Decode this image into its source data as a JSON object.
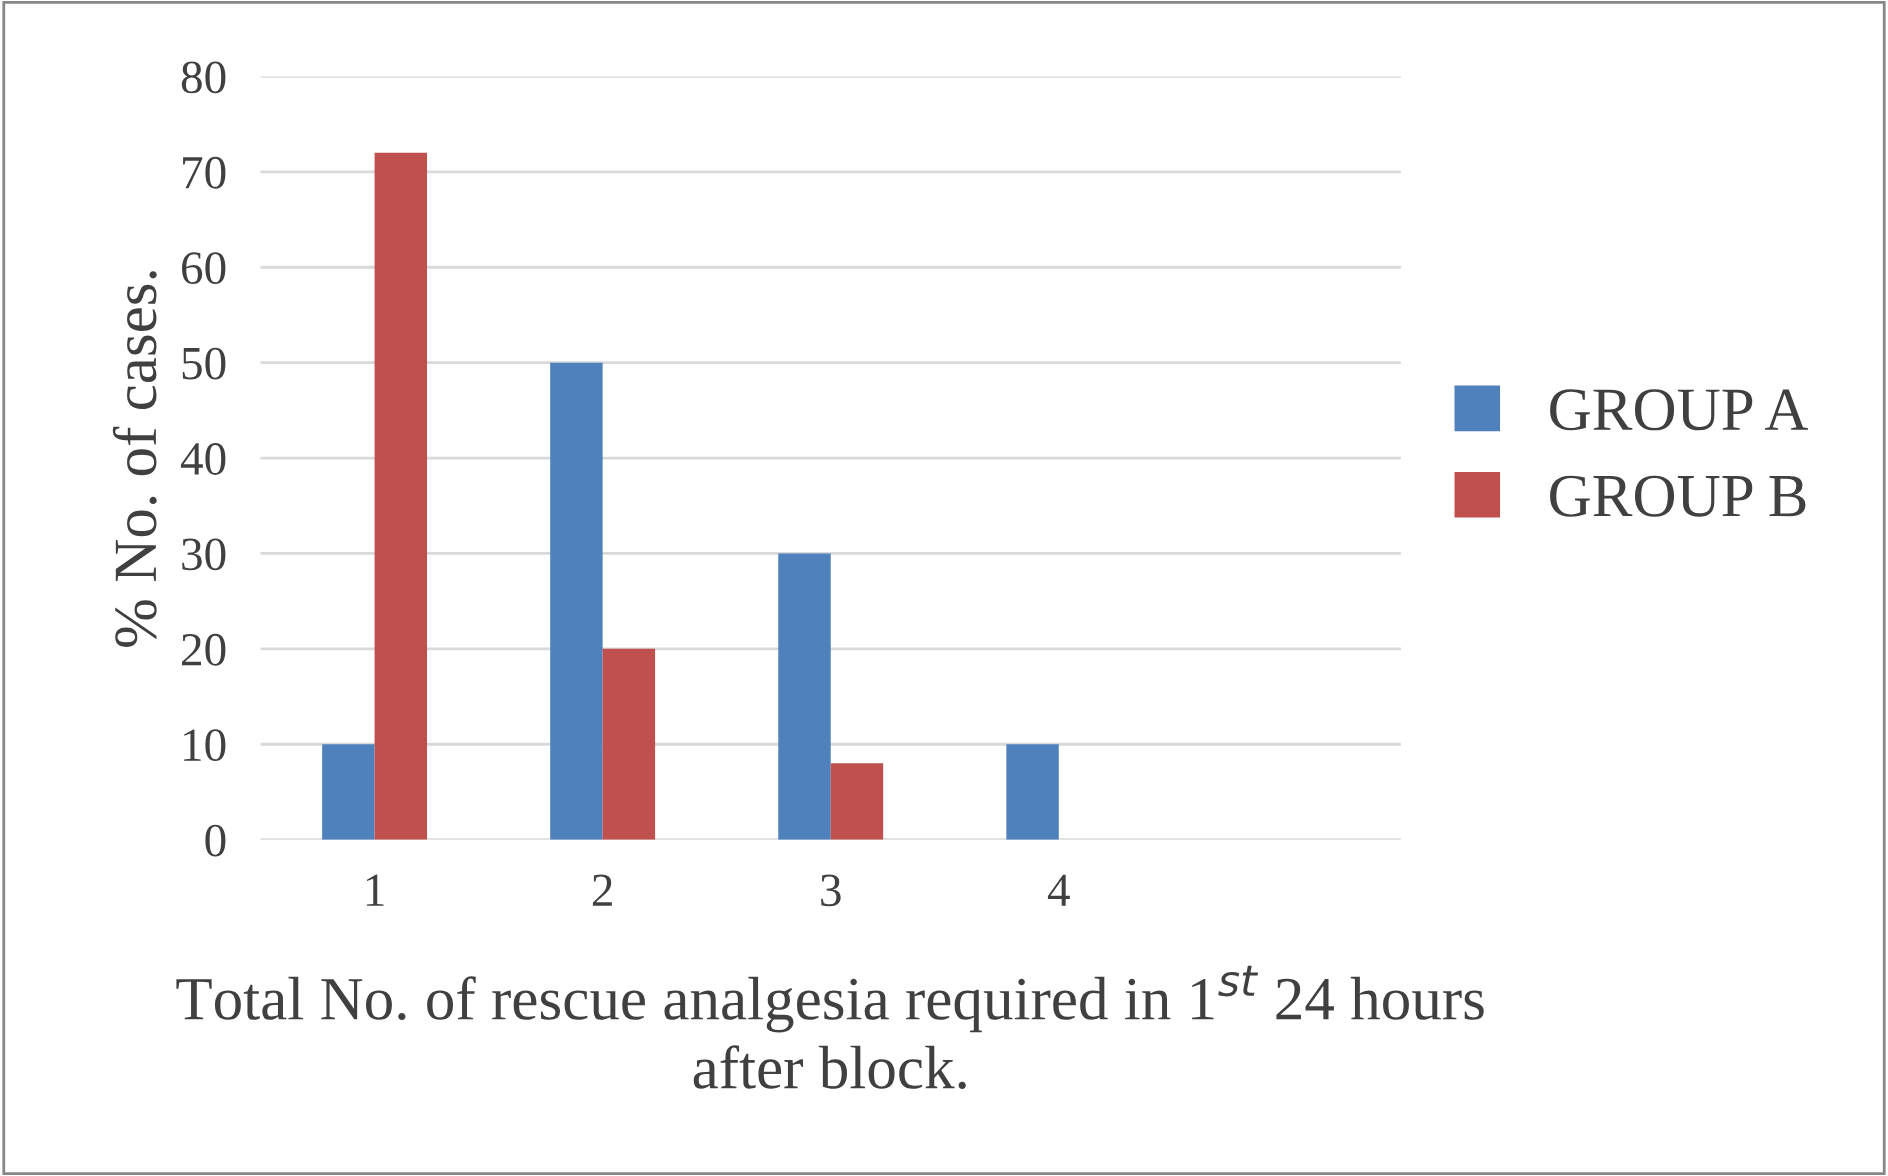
{
  "chart_data": {
    "type": "bar",
    "xlabel": "Total No. of rescue analgesia required in 1$^{st}$ 24 hours\nafter block.",
    "ylabel": "% No. of cases.",
    "categories": [
      "1",
      "2",
      "3",
      "4",
      null
    ],
    "series": [
      {
        "name": "GROUP A",
        "color": "#4f81bd",
        "values": [
          10,
          50,
          30,
          10,
          null
        ]
      },
      {
        "name": "GROUP B",
        "color": "#c0504d",
        "values": [
          72,
          20,
          8,
          0,
          null
        ]
      }
    ],
    "ylim": [
      0,
      80
    ],
    "yticks": [
      0,
      10,
      20,
      30,
      40,
      50,
      60,
      70,
      80
    ],
    "grid": "y",
    "legend": "right"
  }
}
